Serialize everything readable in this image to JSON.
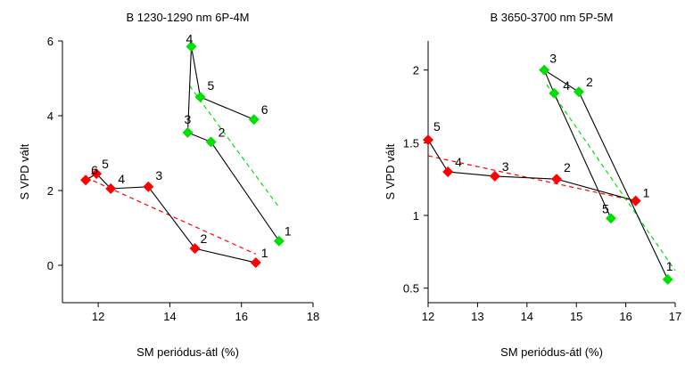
{
  "colors": {
    "red": "#ff0000",
    "green": "#00e000",
    "black": "#000000"
  },
  "chart_data": [
    {
      "type": "scatter",
      "title": "B 1230-1290 nm 6P-4M",
      "xlabel": "SM periódus-átl (%)",
      "ylabel": "S VPD vált",
      "xlim": [
        11,
        18
      ],
      "ylim": [
        -1,
        6
      ],
      "xticks": [
        12,
        14,
        16,
        18
      ],
      "yticks": [
        0,
        2,
        4,
        6
      ],
      "xtick_labels": [
        "12",
        "14",
        "16",
        "18"
      ],
      "ytick_labels": [
        "0",
        "2",
        "4",
        "6"
      ],
      "series": [
        {
          "color": "#ff0000",
          "marker": "diamond",
          "points": [
            {
              "x": 16.4,
              "y": 0.07,
              "label": "1"
            },
            {
              "x": 14.7,
              "y": 0.45,
              "label": "2"
            },
            {
              "x": 13.4,
              "y": 2.1,
              "label": "3"
            },
            {
              "x": 12.35,
              "y": 2.05,
              "label": "4"
            },
            {
              "x": 11.95,
              "y": 2.45,
              "label": "5"
            },
            {
              "x": 11.65,
              "y": 2.28,
              "label": "6"
            }
          ],
          "trend": {
            "x": [
              11.65,
              16.4
            ],
            "y": [
              2.35,
              0.3
            ]
          }
        },
        {
          "color": "#00e000",
          "marker": "diamond",
          "points": [
            {
              "x": 17.05,
              "y": 0.65,
              "label": "1"
            },
            {
              "x": 15.15,
              "y": 3.3,
              "label": "2"
            },
            {
              "x": 14.5,
              "y": 3.55,
              "label": "3"
            },
            {
              "x": 14.6,
              "y": 5.85,
              "label": "4"
            },
            {
              "x": 14.85,
              "y": 4.5,
              "label": "5"
            },
            {
              "x": 16.35,
              "y": 3.9,
              "label": "6"
            }
          ],
          "trend": {
            "x": [
              14.55,
              17.05
            ],
            "y": [
              4.8,
              1.55
            ]
          }
        }
      ]
    },
    {
      "type": "scatter",
      "title": "B 3650-3700 nm 5P-5M",
      "xlabel": "SM periódus-átl (%)",
      "ylabel": "S VPD vált",
      "xlim": [
        12,
        17
      ],
      "ylim": [
        0.4,
        2.2
      ],
      "xticks": [
        12,
        13,
        14,
        15,
        16,
        17
      ],
      "yticks": [
        0.5,
        1,
        1.5,
        2
      ],
      "xtick_labels": [
        "12",
        "13",
        "14",
        "15",
        "16",
        "17"
      ],
      "ytick_labels": [
        "0.5",
        "1",
        "1.5",
        "2"
      ],
      "series": [
        {
          "color": "#ff0000",
          "marker": "diamond",
          "points": [
            {
              "x": 16.2,
              "y": 1.1,
              "label": "1"
            },
            {
              "x": 14.6,
              "y": 1.25,
              "label": "2"
            },
            {
              "x": 13.35,
              "y": 1.27,
              "label": "3"
            },
            {
              "x": 12.4,
              "y": 1.3,
              "label": "4"
            },
            {
              "x": 12.0,
              "y": 1.52,
              "label": "5"
            }
          ],
          "trend": {
            "x": [
              12.0,
              16.2
            ],
            "y": [
              1.41,
              1.1
            ]
          }
        },
        {
          "color": "#00e000",
          "marker": "diamond",
          "points": [
            {
              "x": 16.85,
              "y": 0.56,
              "label": "1"
            },
            {
              "x": 15.05,
              "y": 1.85,
              "label": "2"
            },
            {
              "x": 14.35,
              "y": 2.0,
              "label": "3"
            },
            {
              "x": 14.55,
              "y": 1.84,
              "label": "4"
            },
            {
              "x": 15.7,
              "y": 0.98,
              "label": "5"
            }
          ],
          "trend": {
            "x": [
              14.4,
              17.0
            ],
            "y": [
              1.9,
              0.62
            ]
          }
        }
      ]
    }
  ]
}
